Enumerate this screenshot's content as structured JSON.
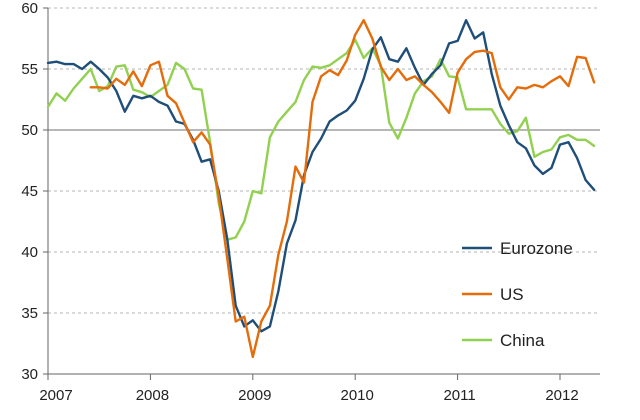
{
  "chart_data": {
    "type": "line",
    "title": "",
    "xlabel": "",
    "ylabel": "",
    "ylim": [
      30,
      60
    ],
    "xlim": [
      "2007-01",
      "2012-06"
    ],
    "yticks": [
      "30",
      "35",
      "40",
      "45",
      "50",
      "55",
      "60"
    ],
    "xticks": [
      "2007",
      "2008",
      "2009",
      "2010",
      "2011",
      "2012"
    ],
    "grid": "dashed horizontal gridlines at 5-point intervals",
    "reference_line": 50,
    "legend": "lower-right",
    "series": [
      {
        "name": "Eurozone",
        "color": "#1f4e79",
        "x": [
          "2007-01",
          "2007-02",
          "2007-03",
          "2007-04",
          "2007-05",
          "2007-06",
          "2007-07",
          "2007-08",
          "2007-09",
          "2007-10",
          "2007-11",
          "2007-12",
          "2008-01",
          "2008-02",
          "2008-03",
          "2008-04",
          "2008-05",
          "2008-06",
          "2008-07",
          "2008-08",
          "2008-09",
          "2008-10",
          "2008-11",
          "2008-12",
          "2009-01",
          "2009-02",
          "2009-03",
          "2009-04",
          "2009-05",
          "2009-06",
          "2009-07",
          "2009-08",
          "2009-09",
          "2009-10",
          "2009-11",
          "2009-12",
          "2010-01",
          "2010-02",
          "2010-03",
          "2010-04",
          "2010-05",
          "2010-06",
          "2010-07",
          "2010-08",
          "2010-09",
          "2010-10",
          "2010-11",
          "2010-12",
          "2011-01",
          "2011-02",
          "2011-03",
          "2011-04",
          "2011-05",
          "2011-06",
          "2011-07",
          "2011-08",
          "2011-09",
          "2011-10",
          "2011-11",
          "2011-12",
          "2012-01",
          "2012-02",
          "2012-03",
          "2012-04",
          "2012-05"
        ],
        "values": [
          55.5,
          55.6,
          55.4,
          55.4,
          55.0,
          55.6,
          55.0,
          54.3,
          53.2,
          51.5,
          52.8,
          52.6,
          52.8,
          52.3,
          52.0,
          50.7,
          50.5,
          49.2,
          47.4,
          47.6,
          45.0,
          41.1,
          35.6,
          33.9,
          34.4,
          33.5,
          33.9,
          36.8,
          40.7,
          42.6,
          46.3,
          48.2,
          49.3,
          50.7,
          51.2,
          51.6,
          52.4,
          54.2,
          56.6,
          57.6,
          55.8,
          55.6,
          56.7,
          55.1,
          53.7,
          54.6,
          55.3,
          57.1,
          57.3,
          59.0,
          57.5,
          58.0,
          54.6,
          52.0,
          50.4,
          49.0,
          48.5,
          47.1,
          46.4,
          46.9,
          48.8,
          49.0,
          47.7,
          45.9,
          45.1
        ]
      },
      {
        "name": "US",
        "color": "#e46c0a",
        "x": [
          "2007-06",
          "2007-07",
          "2007-08",
          "2007-09",
          "2007-10",
          "2007-11",
          "2007-12",
          "2008-01",
          "2008-02",
          "2008-03",
          "2008-04",
          "2008-05",
          "2008-06",
          "2008-07",
          "2008-08",
          "2008-09",
          "2008-10",
          "2008-11",
          "2008-12",
          "2009-01",
          "2009-02",
          "2009-03",
          "2009-04",
          "2009-05",
          "2009-06",
          "2009-07",
          "2009-08",
          "2009-09",
          "2009-10",
          "2009-11",
          "2009-12",
          "2010-01",
          "2010-02",
          "2010-03",
          "2010-04",
          "2010-05",
          "2010-06",
          "2010-07",
          "2010-08",
          "2010-09",
          "2010-10",
          "2010-11",
          "2010-12",
          "2011-01",
          "2011-02",
          "2011-03",
          "2011-04",
          "2011-05",
          "2011-06",
          "2011-07",
          "2011-08",
          "2011-09",
          "2011-10",
          "2011-11",
          "2011-12",
          "2012-01",
          "2012-02",
          "2012-03",
          "2012-04",
          "2012-05"
        ],
        "values": [
          53.5,
          53.5,
          53.4,
          54.2,
          53.7,
          54.8,
          53.6,
          55.3,
          55.6,
          52.8,
          52.2,
          50.6,
          49.0,
          49.8,
          48.8,
          44.6,
          39.5,
          34.3,
          34.7,
          31.4,
          34.3,
          35.6,
          39.8,
          42.5,
          47.0,
          45.7,
          52.3,
          54.4,
          54.9,
          54.5,
          55.7,
          57.8,
          59.0,
          57.5,
          55.2,
          54.1,
          55.0,
          54.1,
          54.4,
          53.7,
          53.1,
          52.3,
          51.4,
          54.7,
          55.8,
          56.4,
          56.5,
          56.3,
          53.5,
          52.5,
          53.5,
          53.4,
          53.7,
          53.5,
          54.0,
          54.4,
          53.6,
          56.0,
          55.9,
          53.9
        ]
      },
      {
        "name": "China",
        "color": "#92d050",
        "x": [
          "2007-01",
          "2007-02",
          "2007-03",
          "2007-04",
          "2007-05",
          "2007-06",
          "2007-07",
          "2007-08",
          "2007-09",
          "2007-10",
          "2007-11",
          "2007-12",
          "2008-01",
          "2008-02",
          "2008-03",
          "2008-04",
          "2008-05",
          "2008-06",
          "2008-07",
          "2008-08",
          "2008-09",
          "2008-10",
          "2008-11",
          "2008-12",
          "2009-01",
          "2009-02",
          "2009-03",
          "2009-04",
          "2009-05",
          "2009-06",
          "2009-07",
          "2009-08",
          "2009-09",
          "2009-10",
          "2009-11",
          "2009-12",
          "2010-01",
          "2010-02",
          "2010-03",
          "2010-04",
          "2010-05",
          "2010-06",
          "2010-07",
          "2010-08",
          "2010-09",
          "2010-10",
          "2010-11",
          "2010-12",
          "2011-01",
          "2011-02",
          "2011-03",
          "2011-04",
          "2011-05",
          "2011-06",
          "2011-07",
          "2011-08",
          "2011-09",
          "2011-10",
          "2011-11",
          "2011-12",
          "2012-01",
          "2012-02",
          "2012-03",
          "2012-04",
          "2012-05"
        ],
        "values": [
          51.9,
          53.0,
          52.4,
          53.4,
          54.2,
          55.0,
          53.2,
          53.6,
          55.2,
          55.3,
          53.3,
          53.1,
          52.7,
          53.2,
          53.7,
          55.5,
          55.0,
          53.4,
          53.3,
          49.0,
          44.0,
          41.0,
          41.2,
          42.5,
          45.0,
          44.8,
          49.4,
          50.7,
          51.5,
          52.3,
          54.1,
          55.2,
          55.1,
          55.3,
          55.8,
          56.3,
          57.4,
          55.9,
          56.7,
          55.3,
          50.6,
          49.3,
          51.0,
          53.0,
          54.0,
          54.4,
          55.8,
          54.4,
          54.3,
          51.7,
          51.7,
          51.7,
          51.7,
          50.5,
          49.7,
          49.9,
          51.0,
          47.8,
          48.2,
          48.4,
          49.4,
          49.6,
          49.2,
          49.2,
          48.7
        ]
      }
    ]
  }
}
